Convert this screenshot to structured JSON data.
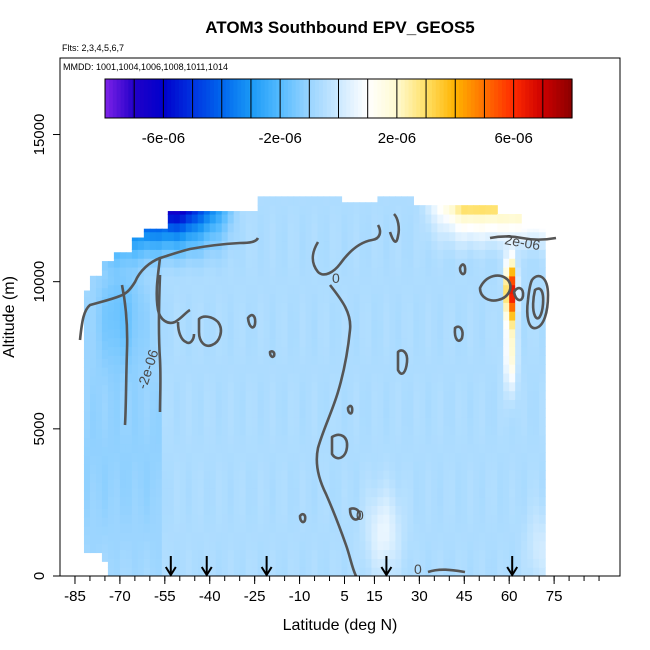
{
  "chart_data": {
    "type": "heatmap",
    "title": "ATOM3 Southbound EPV_GEOS5",
    "flights_note": "Flts: 2,3,4,5,6,7",
    "dates_note": "MMDD: 1001,1004,1006,1008,1011,1014",
    "xlabel": "Latitude (deg N)",
    "ylabel": "Altitude (m)",
    "xlim": [
      -90,
      97
    ],
    "ylim": [
      0,
      17600
    ],
    "x_tick_labels": [
      "-85",
      "-70",
      "-55",
      "-40",
      "-25",
      "-10",
      "5",
      "15",
      "30",
      "45",
      "60",
      "75"
    ],
    "x_minor_ticks": [
      -85,
      -80,
      -75,
      -70,
      -65,
      -60,
      -55,
      -50,
      -45,
      -40,
      -35,
      -30,
      -25,
      -20,
      -15,
      -10,
      -5,
      0,
      5,
      10,
      15,
      20,
      25,
      30,
      35,
      40,
      45,
      50,
      55,
      60,
      65,
      70,
      75,
      80,
      85,
      90
    ],
    "y_ticks": [
      0,
      5000,
      10000,
      15000
    ],
    "y_tick_labels": [
      "0",
      "5000",
      "10000",
      "15000"
    ],
    "colorbar": {
      "range": [
        -8e-06,
        8e-06
      ],
      "tick_values": [
        -6e-06,
        -2e-06,
        2e-06,
        6e-06
      ],
      "tick_labels": [
        "-6e-06",
        "-2e-06",
        "2e-06",
        "6e-06"
      ],
      "colors": [
        "#7e22e8",
        "#2200c8",
        "#0000cc",
        "#0033e0",
        "#0066ee",
        "#1a99f6",
        "#55bbff",
        "#99d4ff",
        "#cce9ff",
        "#ffffff",
        "#fffad0",
        "#ffe066",
        "#ffb300",
        "#ff7000",
        "#ff2a00",
        "#cc0000",
        "#8b0000"
      ]
    },
    "contour_levels": [
      -2e-06,
      0,
      2e-06
    ],
    "contour_labels": [
      "-2e-06",
      "0",
      "2e-06"
    ],
    "sampling_markers_lat": [
      -53,
      -41,
      -21,
      19,
      61
    ]
  }
}
